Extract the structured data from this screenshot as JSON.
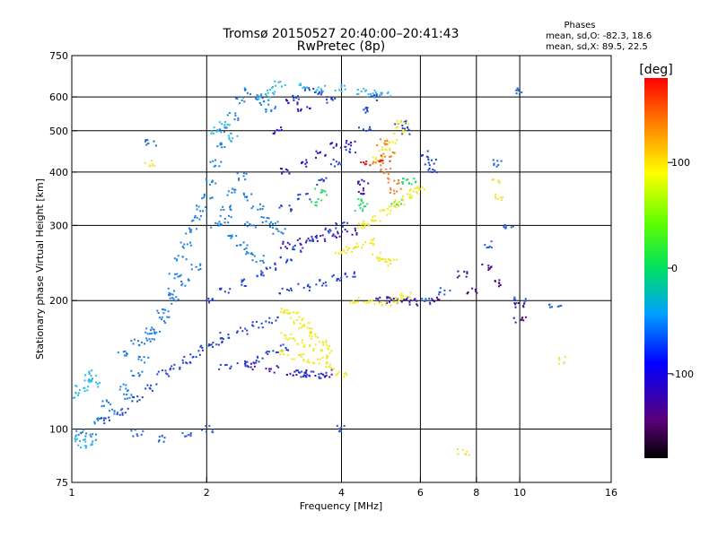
{
  "header": {
    "title": "Tromsø 20150527 20:40:00–20:41:43",
    "subtitle": "RwPretec (8p)",
    "stats_heading": "Phases",
    "stats_o": "mean, sd,O: -82.3, 18.6",
    "stats_x": "mean, sd,X:  89.5, 22.5"
  },
  "chart_data": {
    "type": "scatter",
    "xlabel": "Frequency [MHz]",
    "ylabel": "Stationary phase Virtual Height [km]",
    "x_scale": "log",
    "y_scale": "log",
    "xlim": [
      1,
      16
    ],
    "ylim": [
      75,
      750
    ],
    "x_ticks": [
      1,
      2,
      4,
      6,
      8,
      10,
      16
    ],
    "y_ticks": [
      75,
      100,
      200,
      300,
      400,
      500,
      600,
      750
    ],
    "x_grid_lines": [
      2,
      4,
      6,
      8,
      10
    ],
    "y_grid_lines": [
      100,
      200,
      300,
      400,
      500,
      600
    ],
    "grid": true,
    "colorbar": {
      "label": "[deg]",
      "ticks": [
        100,
        0,
        -100
      ],
      "colormap": "rainbow"
    },
    "series": [
      {
        "phase_deg": -75,
        "color": "#1f7fe0",
        "points": [
          [
            1.05,
            98
          ],
          [
            1.1,
            96
          ],
          [
            1.15,
            105
          ],
          [
            1.2,
            115
          ],
          [
            1.25,
            110
          ],
          [
            1.3,
            125
          ],
          [
            1.35,
            120
          ],
          [
            1.4,
            135
          ],
          [
            1.45,
            145
          ],
          [
            1.5,
            160
          ],
          [
            1.55,
            170
          ],
          [
            1.6,
            190
          ],
          [
            1.65,
            210
          ],
          [
            1.7,
            230
          ],
          [
            1.75,
            250
          ],
          [
            1.8,
            270
          ],
          [
            1.85,
            290
          ],
          [
            1.9,
            310
          ],
          [
            1.95,
            330
          ],
          [
            2.0,
            350
          ],
          [
            2.05,
            380
          ],
          [
            2.1,
            420
          ],
          [
            2.15,
            460
          ],
          [
            2.2,
            500
          ],
          [
            2.3,
            540
          ],
          [
            2.4,
            590
          ],
          [
            2.5,
            620
          ],
          [
            2.6,
            600
          ],
          [
            2.7,
            580
          ],
          [
            2.8,
            560
          ],
          [
            2.2,
            330
          ],
          [
            2.3,
            360
          ],
          [
            2.4,
            390
          ],
          [
            2.5,
            350
          ],
          [
            2.6,
            330
          ],
          [
            2.7,
            310
          ],
          [
            2.8,
            300
          ],
          [
            2.9,
            290
          ],
          [
            2.3,
            280
          ],
          [
            2.4,
            270
          ],
          [
            2.5,
            260
          ],
          [
            2.6,
            250
          ],
          [
            1.9,
            240
          ],
          [
            1.8,
            220
          ],
          [
            1.7,
            200
          ],
          [
            1.6,
            180
          ],
          [
            1.5,
            170
          ],
          [
            1.4,
            160
          ],
          [
            1.3,
            150
          ],
          [
            2.1,
            300
          ],
          [
            2.2,
            310
          ],
          [
            2.5,
            300
          ]
        ]
      },
      {
        "phase_deg": -95,
        "color": "#2040d0",
        "points": [
          [
            1.2,
            105
          ],
          [
            1.3,
            110
          ],
          [
            1.4,
            118
          ],
          [
            1.5,
            125
          ],
          [
            1.6,
            135
          ],
          [
            1.7,
            140
          ],
          [
            1.8,
            145
          ],
          [
            1.9,
            150
          ],
          [
            2.0,
            155
          ],
          [
            2.1,
            160
          ],
          [
            2.2,
            165
          ],
          [
            2.4,
            170
          ],
          [
            2.6,
            175
          ],
          [
            2.8,
            180
          ],
          [
            2.2,
            140
          ],
          [
            2.4,
            142
          ],
          [
            2.6,
            145
          ],
          [
            2.8,
            150
          ],
          [
            3.0,
            155
          ],
          [
            2.0,
            200
          ],
          [
            2.2,
            210
          ],
          [
            2.4,
            220
          ],
          [
            2.6,
            230
          ],
          [
            2.8,
            240
          ],
          [
            3.0,
            250
          ],
          [
            3.2,
            265
          ],
          [
            3.5,
            280
          ],
          [
            3.8,
            290
          ],
          [
            4.0,
            300
          ],
          [
            3.0,
            330
          ],
          [
            3.3,
            350
          ],
          [
            3.6,
            380
          ],
          [
            3.9,
            420
          ],
          [
            4.2,
            450
          ],
          [
            4.5,
            500
          ],
          [
            4.6,
            560
          ],
          [
            4.7,
            600
          ],
          [
            3.2,
            600
          ],
          [
            3.4,
            620
          ],
          [
            3.6,
            610
          ],
          [
            3.8,
            590
          ],
          [
            5.4,
            520
          ],
          [
            5.6,
            500
          ],
          [
            6.2,
            440
          ],
          [
            6.3,
            420
          ],
          [
            6.4,
            400
          ],
          [
            3.0,
            210
          ],
          [
            3.3,
            215
          ],
          [
            3.6,
            220
          ],
          [
            3.9,
            225
          ],
          [
            4.2,
            230
          ],
          [
            3.2,
            135
          ],
          [
            3.4,
            134
          ],
          [
            3.6,
            133
          ]
        ]
      },
      {
        "phase_deg": -120,
        "color": "#3a10b0",
        "points": [
          [
            2.5,
            140
          ],
          [
            2.8,
            138
          ],
          [
            3.1,
            136
          ],
          [
            3.4,
            135
          ],
          [
            3.7,
            135
          ],
          [
            3.0,
            270
          ],
          [
            3.3,
            275
          ],
          [
            3.6,
            280
          ],
          [
            3.9,
            285
          ],
          [
            4.2,
            290
          ],
          [
            3.0,
            400
          ],
          [
            3.3,
            420
          ],
          [
            3.6,
            440
          ],
          [
            3.9,
            460
          ],
          [
            4.2,
            470
          ],
          [
            4.4,
            360
          ],
          [
            4.5,
            380
          ],
          [
            3.1,
            580
          ],
          [
            3.3,
            560
          ],
          [
            2.9,
            500
          ],
          [
            4.9,
            200
          ],
          [
            5.2,
            200
          ],
          [
            5.5,
            200
          ],
          [
            5.8,
            198
          ]
        ]
      },
      {
        "phase_deg": -50,
        "color": "#30b8e8",
        "points": [
          [
            1.02,
            120
          ],
          [
            1.05,
            125
          ],
          [
            1.08,
            130
          ],
          [
            1.1,
            135
          ],
          [
            1.12,
            128
          ],
          [
            1.02,
            95
          ],
          [
            1.05,
            93
          ],
          [
            1.08,
            92
          ],
          [
            2.7,
            600
          ],
          [
            2.8,
            620
          ],
          [
            2.9,
            640
          ],
          [
            3.3,
            640
          ],
          [
            3.6,
            630
          ],
          [
            4.0,
            630
          ],
          [
            4.4,
            620
          ],
          [
            4.7,
            610
          ],
          [
            5.0,
            610
          ],
          [
            2.1,
            500
          ],
          [
            2.2,
            520
          ],
          [
            2.3,
            480
          ]
        ]
      },
      {
        "phase_deg": 20,
        "color": "#30d870",
        "points": [
          [
            3.5,
            340
          ],
          [
            3.6,
            360
          ],
          [
            4.4,
            330
          ],
          [
            4.5,
            340
          ],
          [
            5.3,
            340
          ],
          [
            5.5,
            380
          ],
          [
            5.7,
            380
          ]
        ]
      },
      {
        "phase_deg": 95,
        "color": "#f0e820",
        "points": [
          [
            3.0,
            190
          ],
          [
            3.1,
            185
          ],
          [
            3.2,
            180
          ],
          [
            3.3,
            175
          ],
          [
            3.4,
            170
          ],
          [
            3.5,
            165
          ],
          [
            3.6,
            160
          ],
          [
            3.7,
            155
          ],
          [
            3.8,
            150
          ],
          [
            3.0,
            165
          ],
          [
            3.2,
            160
          ],
          [
            3.4,
            155
          ],
          [
            3.6,
            145
          ],
          [
            3.8,
            140
          ],
          [
            4.0,
            135
          ],
          [
            3.0,
            150
          ],
          [
            3.2,
            148
          ],
          [
            3.4,
            145
          ],
          [
            4.4,
            300
          ],
          [
            4.6,
            305
          ],
          [
            4.8,
            310
          ],
          [
            5.0,
            320
          ],
          [
            5.2,
            330
          ],
          [
            5.4,
            340
          ],
          [
            5.6,
            350
          ],
          [
            5.8,
            360
          ],
          [
            6.0,
            370
          ],
          [
            4.0,
            260
          ],
          [
            4.2,
            265
          ],
          [
            4.4,
            270
          ],
          [
            4.6,
            275
          ],
          [
            4.8,
            255
          ],
          [
            5.0,
            250
          ],
          [
            5.2,
            245
          ],
          [
            4.3,
            200
          ],
          [
            4.6,
            198
          ],
          [
            5.0,
            198
          ],
          [
            5.3,
            200
          ],
          [
            5.6,
            205
          ],
          [
            4.8,
            430
          ],
          [
            5.0,
            450
          ],
          [
            5.2,
            470
          ],
          [
            5.4,
            500
          ],
          [
            5.5,
            520
          ]
        ]
      },
      {
        "phase_deg": 140,
        "color": "#f08020",
        "points": [
          [
            4.8,
            420
          ],
          [
            5.0,
            400
          ],
          [
            5.2,
            380
          ],
          [
            5.3,
            360
          ],
          [
            5.1,
            440
          ],
          [
            4.9,
            470
          ]
        ]
      },
      {
        "phase_deg": 160,
        "color": "#e02020",
        "points": [
          [
            4.5,
            420
          ],
          [
            5.0,
            430
          ]
        ]
      },
      {
        "phase_deg": -150,
        "color": "#4a0880",
        "points": [
          [
            6.5,
            200
          ],
          [
            7.5,
            230
          ],
          [
            7.8,
            210
          ],
          [
            8.5,
            240
          ],
          [
            8.8,
            220
          ],
          [
            10.0,
            195
          ],
          [
            10.0,
            180
          ]
        ]
      },
      {
        "phase_deg": -90,
        "color": "#2060d8",
        "points": [
          [
            1.5,
            470
          ],
          [
            10.0,
            620
          ],
          [
            9.0,
            420
          ],
          [
            9.5,
            300
          ],
          [
            10.0,
            200
          ],
          [
            12.0,
            195
          ],
          [
            8.5,
            270
          ],
          [
            6.2,
            200
          ],
          [
            6.8,
            210
          ],
          [
            2.0,
            100
          ],
          [
            4.0,
            100
          ],
          [
            1.8,
            98
          ],
          [
            1.6,
            95
          ],
          [
            1.4,
            98
          ]
        ]
      },
      {
        "phase_deg": 100,
        "color": "#f4e040",
        "points": [
          [
            1.5,
            420
          ],
          [
            12.5,
            145
          ],
          [
            7.5,
            88
          ],
          [
            9.0,
            350
          ],
          [
            8.9,
            380
          ]
        ]
      }
    ]
  }
}
